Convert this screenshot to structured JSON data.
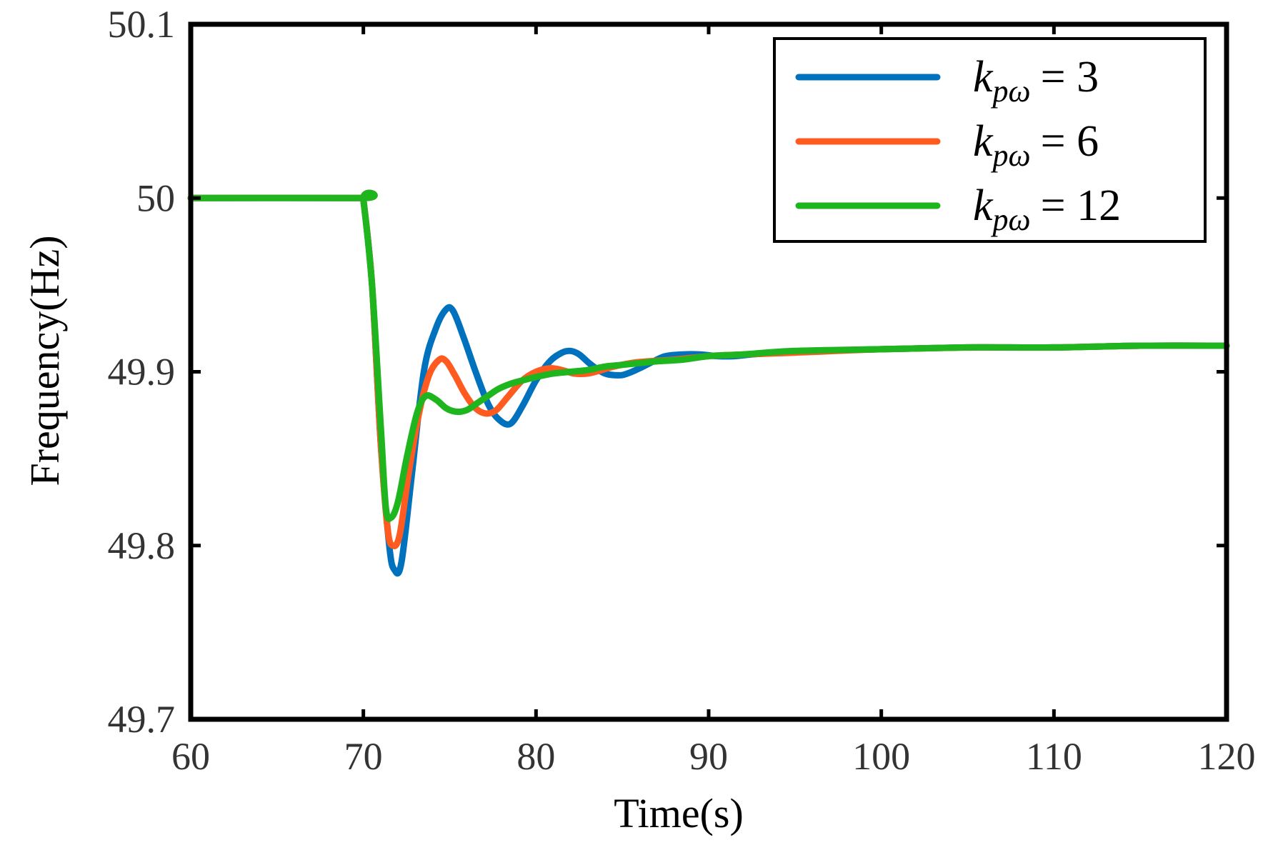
{
  "chart_data": {
    "type": "line",
    "title": "",
    "xlabel": "Time(s)",
    "ylabel": "Frequency(Hz)",
    "xlim": [
      60,
      120
    ],
    "ylim": [
      49.7,
      50.1
    ],
    "xticks": [
      60,
      70,
      80,
      90,
      100,
      110,
      120
    ],
    "yticks": [
      49.7,
      49.8,
      49.9,
      50,
      50.1
    ],
    "xtick_labels": [
      "60",
      "70",
      "80",
      "90",
      "100",
      "110",
      "120"
    ],
    "ytick_labels": [
      "49.7",
      "49.8",
      "49.9",
      "50",
      "50.1"
    ],
    "grid": false,
    "legend_position": "top-right",
    "series": [
      {
        "name": "k_pω = 3",
        "legend": {
          "symbol": "k",
          "subscript": "pω",
          "value": "= 3"
        },
        "color": "#0072BD",
        "x": [
          60,
          69.9,
          70,
          70.5,
          71,
          71.5,
          71.8,
          72.2,
          72.8,
          73.5,
          74.2,
          74.8,
          75.2,
          75.8,
          76.5,
          77.2,
          77.8,
          78.5,
          79.2,
          80,
          80.8,
          81.5,
          82,
          82.5,
          83.2,
          84,
          84.8,
          85.3,
          86,
          86.8,
          87.5,
          88.5,
          89.5,
          90.5,
          91.5,
          92.5,
          94,
          96,
          100,
          105,
          110,
          115,
          120
        ],
        "y": [
          50,
          50,
          49.999,
          49.95,
          49.86,
          49.8,
          49.786,
          49.79,
          49.84,
          49.9,
          49.925,
          49.936,
          49.935,
          49.92,
          49.9,
          49.882,
          49.873,
          49.87,
          49.88,
          49.895,
          49.906,
          49.911,
          49.912,
          49.91,
          49.904,
          49.899,
          49.898,
          49.899,
          49.902,
          49.906,
          49.909,
          49.91,
          49.91,
          49.909,
          49.909,
          49.91,
          49.911,
          49.912,
          49.913,
          49.914,
          49.914,
          49.915,
          49.915
        ]
      },
      {
        "name": "k_pω = 6",
        "legend": {
          "symbol": "k",
          "subscript": "pω",
          "value": "= 6"
        },
        "color": "#FF5A1F",
        "x": [
          60,
          69.9,
          70,
          70.5,
          71,
          71.4,
          71.7,
          72.1,
          72.6,
          73.2,
          73.8,
          74.4,
          74.8,
          75.3,
          75.9,
          76.5,
          77.1,
          77.7,
          78.4,
          79.2,
          80,
          80.8,
          81.5,
          82.2,
          83,
          83.8,
          84.5,
          85.5,
          86.5,
          88,
          90,
          92,
          95,
          100,
          105,
          110,
          115,
          120
        ],
        "y": [
          50,
          50,
          49.999,
          49.95,
          49.86,
          49.81,
          49.8,
          49.806,
          49.84,
          49.875,
          49.898,
          49.907,
          49.906,
          49.898,
          49.887,
          49.879,
          49.876,
          49.878,
          49.886,
          49.895,
          49.9,
          49.902,
          49.901,
          49.899,
          49.899,
          49.901,
          49.903,
          49.905,
          49.906,
          49.907,
          49.909,
          49.91,
          49.911,
          49.913,
          49.914,
          49.914,
          49.915,
          49.915
        ]
      },
      {
        "name": "k_pω = 12",
        "legend": {
          "symbol": "k",
          "subscript": "pω",
          "value": "= 12"
        },
        "color": "#1EB51E",
        "x": [
          60,
          69.9,
          70,
          70.5,
          71,
          71.3,
          71.6,
          72,
          72.5,
          73.1,
          73.6,
          74.2,
          74.8,
          75.4,
          76,
          76.6,
          77.2,
          77.8,
          78.5,
          79.2,
          80,
          81,
          82,
          83,
          84,
          85,
          86,
          87,
          88.5,
          90,
          92,
          95,
          100,
          105,
          110,
          115,
          120
        ],
        "y": [
          50,
          50,
          49.999,
          49.95,
          49.87,
          49.822,
          49.816,
          49.825,
          49.85,
          49.876,
          49.886,
          49.884,
          49.879,
          49.877,
          49.878,
          49.882,
          49.886,
          49.89,
          49.893,
          49.895,
          49.897,
          49.899,
          49.9,
          49.901,
          49.903,
          49.904,
          49.905,
          49.906,
          49.907,
          49.909,
          49.91,
          49.912,
          49.913,
          49.914,
          49.914,
          49.915,
          49.915
        ]
      }
    ]
  }
}
